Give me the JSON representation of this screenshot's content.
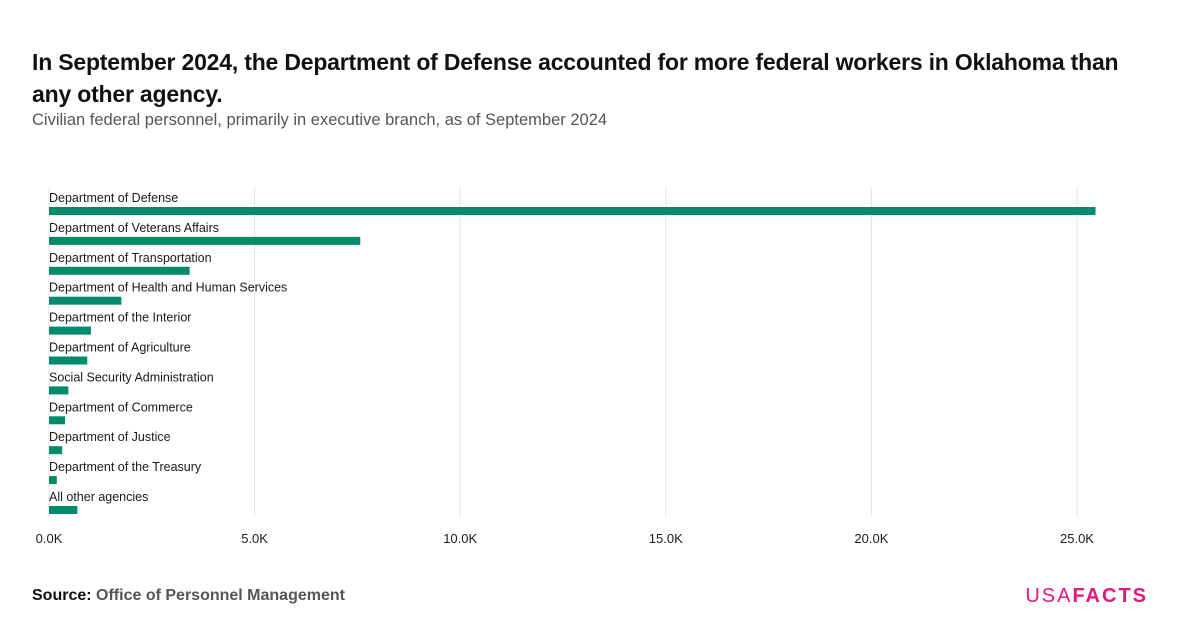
{
  "title": "In September 2024, the Department of Defense accounted for more federal workers in Oklahoma than any other agency.",
  "subtitle": "Civilian federal personnel, primarily in executive branch, as of September 2024",
  "source": {
    "label": "Source:",
    "value": "Office of Personnel Management"
  },
  "logo": {
    "part1": "USA",
    "part2": "FACTS"
  },
  "colors": {
    "bar": "#008c6c",
    "grid": "#e3e3e3",
    "logo": "#e4177a"
  },
  "chart_data": {
    "type": "bar",
    "orientation": "horizontal",
    "categories": [
      "Department of Defense",
      "Department of Veterans Affairs",
      "Department of Transportation",
      "Department of Health and Human Services",
      "Department of the Interior",
      "Department of Agriculture",
      "Social Security Administration",
      "Department of Commerce",
      "Department of Justice",
      "Department of the Treasury",
      "All other agencies"
    ],
    "values": [
      25450,
      7570,
      3420,
      1760,
      1020,
      930,
      470,
      390,
      320,
      190,
      690
    ],
    "xlim": [
      0,
      25000
    ],
    "xticks": [
      0,
      5000,
      10000,
      15000,
      20000,
      25000
    ],
    "xtick_labels": [
      "0.0K",
      "5.0K",
      "10.0K",
      "15.0K",
      "20.0K",
      "25.0K"
    ],
    "grid": true,
    "xlabel": "",
    "ylabel": ""
  }
}
